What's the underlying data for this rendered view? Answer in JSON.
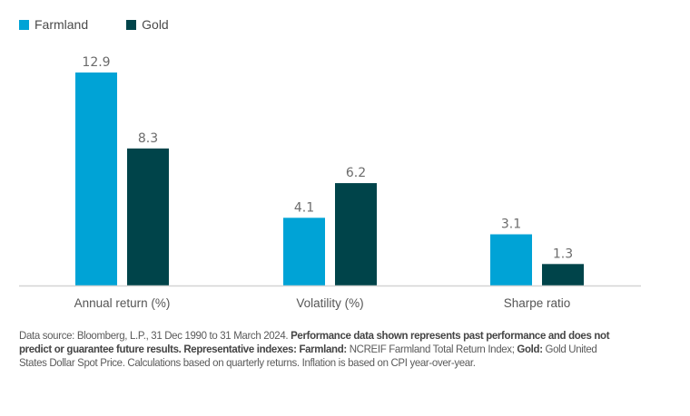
{
  "chart_data": {
    "type": "bar",
    "title": "",
    "xlabel": "",
    "ylabel": "",
    "ylim": [
      0,
      14
    ],
    "grid": false,
    "legend_position": "top-left",
    "categories": [
      "Annual return (%)",
      "Volatility (%)",
      "Sharpe ratio"
    ],
    "series": [
      {
        "name": "Farmland",
        "color": "#00A3D6",
        "values": [
          12.9,
          4.1,
          3.1
        ]
      },
      {
        "name": "Gold",
        "color": "#00444A",
        "values": [
          8.3,
          6.2,
          1.3
        ]
      }
    ],
    "value_labels": [
      [
        "12.9",
        "4.1",
        "3.1"
      ],
      [
        "8.3",
        "6.2",
        "1.3"
      ]
    ]
  },
  "legend": {
    "items": [
      {
        "label": "Farmland",
        "color": "#00A3D6"
      },
      {
        "label": "Gold",
        "color": "#00444A"
      }
    ]
  },
  "footnote": {
    "segments": [
      {
        "text": "Data source: Bloomberg, L.P., 31 Dec 1990 to 31 March 2024. ",
        "bold": false
      },
      {
        "text": "Performance data shown represents past performance and does not predict or guarantee future results. Representative indexes: Farmland:",
        "bold": true
      },
      {
        "text": " NCREIF Farmland Total Return Index; ",
        "bold": false
      },
      {
        "text": "Gold:",
        "bold": true
      },
      {
        "text": " Gold United States Dollar Spot Price. Calculations based on quarterly returns. Inflation is based on CPI year-over-year.",
        "bold": false
      }
    ]
  }
}
